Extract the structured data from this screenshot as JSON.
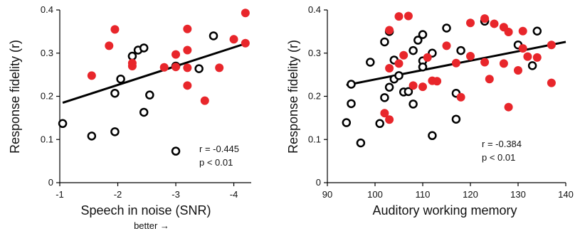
{
  "chart_data": [
    {
      "type": "scatter",
      "title": "",
      "xlabel": "Speech in noise (SNR)",
      "ylabel": "Response fidelity (r)",
      "x_note": "better →",
      "xlim": [
        -1,
        -4.3
      ],
      "ylim": [
        0,
        0.4
      ],
      "x_ticks": [
        -1,
        -2,
        -3,
        -4
      ],
      "x_tick_labels": [
        "-1",
        "-2",
        "-3",
        "-4"
      ],
      "y_ticks": [
        0,
        0.1,
        0.2,
        0.3,
        0.4
      ],
      "y_tick_labels": [
        "0",
        "0.1",
        "0.2",
        "0.3",
        "0.4"
      ],
      "grid": false,
      "legend": "none",
      "series": [
        {
          "marker": "open-circle",
          "color": "#000000",
          "points": [
            [
              -1.05,
              0.137
            ],
            [
              -1.55,
              0.108
            ],
            [
              -1.95,
              0.118
            ],
            [
              -1.95,
              0.207
            ],
            [
              -2.05,
              0.24
            ],
            [
              -2.25,
              0.293
            ],
            [
              -2.35,
              0.307
            ],
            [
              -2.45,
              0.312
            ],
            [
              -2.45,
              0.163
            ],
            [
              -2.55,
              0.203
            ],
            [
              -3.0,
              0.27
            ],
            [
              -3.0,
              0.073
            ],
            [
              -3.65,
              0.34
            ],
            [
              -3.4,
              0.264
            ]
          ]
        },
        {
          "marker": "filled-circle",
          "color": "#e8262b",
          "points": [
            [
              -1.55,
              0.248
            ],
            [
              -1.85,
              0.317
            ],
            [
              -1.95,
              0.355
            ],
            [
              -2.25,
              0.277
            ],
            [
              -2.25,
              0.27
            ],
            [
              -2.8,
              0.267
            ],
            [
              -3.0,
              0.268
            ],
            [
              -3.0,
              0.297
            ],
            [
              -3.2,
              0.307
            ],
            [
              -3.2,
              0.356
            ],
            [
              -3.2,
              0.266
            ],
            [
              -3.2,
              0.225
            ],
            [
              -3.5,
              0.19
            ],
            [
              -3.75,
              0.266
            ],
            [
              -4.0,
              0.332
            ],
            [
              -4.2,
              0.393
            ],
            [
              -4.2,
              0.323
            ]
          ]
        }
      ],
      "trend_line": {
        "x": [
          -1.05,
          -4.2
        ],
        "y": [
          0.185,
          0.322
        ],
        "color": "#000000"
      },
      "annotations": [
        "r = -0.445",
        "p < 0.01"
      ]
    },
    {
      "type": "scatter",
      "title": "",
      "xlabel": "Auditory working memory",
      "ylabel": "Response fidelity (r)",
      "xlim": [
        90,
        140
      ],
      "ylim": [
        0,
        0.4
      ],
      "x_ticks": [
        90,
        100,
        110,
        120,
        130,
        140
      ],
      "x_tick_labels": [
        "90",
        "100",
        "110",
        "120",
        "130",
        "140"
      ],
      "y_ticks": [
        0,
        0.1,
        0.2,
        0.3,
        0.4
      ],
      "y_tick_labels": [
        "0",
        "0.1",
        "0.2",
        "0.3",
        "0.4"
      ],
      "grid": false,
      "legend": "none",
      "series": [
        {
          "marker": "open-circle",
          "color": "#000000",
          "points": [
            [
              94,
              0.139
            ],
            [
              95,
              0.183
            ],
            [
              95,
              0.228
            ],
            [
              97,
              0.092
            ],
            [
              99,
              0.279
            ],
            [
              101,
              0.137
            ],
            [
              102,
              0.197
            ],
            [
              102,
              0.326
            ],
            [
              103,
              0.35
            ],
            [
              103,
              0.221
            ],
            [
              104,
              0.284
            ],
            [
              104,
              0.24
            ],
            [
              105,
              0.248
            ],
            [
              106,
              0.21
            ],
            [
              107,
              0.211
            ],
            [
              108,
              0.306
            ],
            [
              108,
              0.182
            ],
            [
              109,
              0.33
            ],
            [
              110,
              0.343
            ],
            [
              110,
              0.282
            ],
            [
              110,
              0.268
            ],
            [
              112,
              0.3
            ],
            [
              112,
              0.109
            ],
            [
              115,
              0.358
            ],
            [
              117,
              0.207
            ],
            [
              117,
              0.147
            ],
            [
              118,
              0.306
            ],
            [
              123,
              0.374
            ],
            [
              130,
              0.319
            ],
            [
              133,
              0.271
            ],
            [
              134,
              0.351
            ]
          ]
        },
        {
          "marker": "filled-circle",
          "color": "#e8262b",
          "points": [
            [
              102,
              0.161
            ],
            [
              103,
              0.146
            ],
            [
              103,
              0.353
            ],
            [
              103,
              0.265
            ],
            [
              105,
              0.276
            ],
            [
              105,
              0.385
            ],
            [
              106,
              0.295
            ],
            [
              107,
              0.386
            ],
            [
              108,
              0.225
            ],
            [
              110,
              0.222
            ],
            [
              111,
              0.29
            ],
            [
              112,
              0.236
            ],
            [
              113,
              0.235
            ],
            [
              115,
              0.317
            ],
            [
              117,
              0.277
            ],
            [
              118,
              0.198
            ],
            [
              120,
              0.293
            ],
            [
              120,
              0.37
            ],
            [
              123,
              0.279
            ],
            [
              123,
              0.38
            ],
            [
              124,
              0.24
            ],
            [
              125,
              0.368
            ],
            [
              127,
              0.276
            ],
            [
              127,
              0.36
            ],
            [
              128,
              0.349
            ],
            [
              128,
              0.175
            ],
            [
              130,
              0.26
            ],
            [
              131,
              0.351
            ],
            [
              131,
              0.311
            ],
            [
              132,
              0.292
            ],
            [
              134,
              0.29
            ],
            [
              137,
              0.319
            ],
            [
              137,
              0.231
            ]
          ]
        }
      ],
      "trend_line": {
        "x": [
          94,
          140
        ],
        "y": [
          0.226,
          0.326
        ],
        "color": "#000000"
      },
      "annotations": [
        "r = -0.384",
        "p < 0.01"
      ]
    }
  ]
}
